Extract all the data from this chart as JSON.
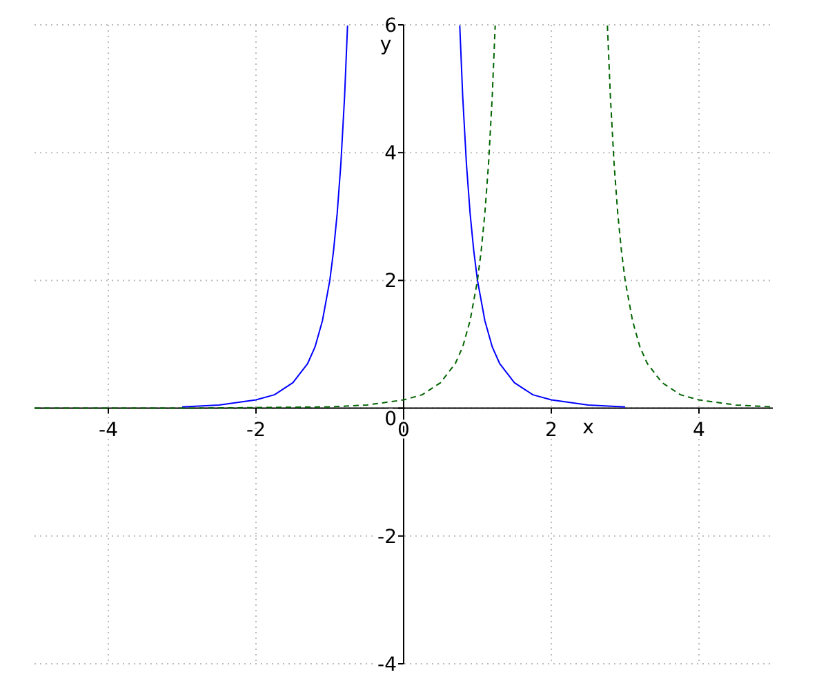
{
  "chart_data": {
    "type": "line",
    "xlabel": "x",
    "ylabel": "y",
    "xlim": [
      -5,
      5
    ],
    "ylim": [
      -4,
      6
    ],
    "xticks": [
      -4,
      -2,
      0,
      2,
      4
    ],
    "yticks": [
      -4,
      -2,
      0,
      2,
      4,
      6
    ],
    "grid": true,
    "marker": "none",
    "series": [
      {
        "color": "#0000ff",
        "line_style": "solid",
        "x": [
          -3,
          -2.5,
          -2,
          -1.75,
          -1.5,
          -1.3,
          -1.2,
          -1.1,
          -1,
          -0.95,
          -0.9,
          -0.85,
          -0.8,
          -0.76,
          0,
          0.76,
          0.8,
          0.85,
          0.9,
          0.95,
          1,
          1.1,
          1.2,
          1.3,
          1.5,
          1.75,
          2,
          2.5,
          3
        ],
        "values": [
          0.02,
          0.05,
          0.13,
          0.21,
          0.4,
          0.7,
          0.96,
          1.37,
          2,
          2.46,
          3.05,
          3.83,
          4.88,
          5.99,
          null,
          5.99,
          4.88,
          3.83,
          3.05,
          2.46,
          2,
          1.37,
          0.96,
          0.7,
          0.4,
          0.21,
          0.13,
          0.05,
          0.02
        ]
      },
      {
        "color": "#006400",
        "line_style": "dashed",
        "x": [
          -5,
          -4,
          -3,
          -2,
          -1,
          -0.5,
          0,
          0.25,
          0.5,
          0.7,
          0.8,
          0.9,
          1,
          1.05,
          1.1,
          1.15,
          1.2,
          1.24,
          2,
          2.76,
          2.8,
          2.85,
          2.9,
          2.95,
          3,
          3.1,
          3.2,
          3.3,
          3.5,
          3.75,
          4,
          4.5,
          5
        ],
        "values": [
          0,
          0,
          0,
          0.01,
          0.02,
          0.05,
          0.13,
          0.21,
          0.4,
          0.7,
          0.96,
          1.37,
          2,
          2.46,
          3.05,
          3.83,
          4.88,
          5.99,
          null,
          5.99,
          4.88,
          3.83,
          3.05,
          2.46,
          2,
          1.37,
          0.96,
          0.7,
          0.4,
          0.21,
          0.13,
          0.05,
          0.02
        ]
      }
    ]
  }
}
